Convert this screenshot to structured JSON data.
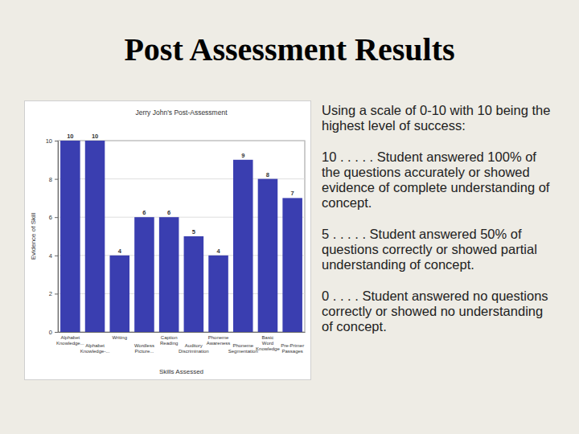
{
  "slide": {
    "title": "Post Assessment Results",
    "paragraphs": [
      "Using a scale of 0-10 with 10 being the highest level of success:",
      "10 . . . . . Student answered 100% of the questions accurately or showed evidence of complete understanding of concept.",
      "5 . . . . . Student answered 50% of questions correctly or showed partial understanding of concept.",
      "0 . . . . Student answered no questions correctly or showed no understanding of concept."
    ]
  },
  "chart_data": {
    "type": "bar",
    "title": "Jerry John's Post-Assessment",
    "x_label": "Skills Assessed",
    "y_label": "Evidence of Skill",
    "categories": [
      "Alphabet Knowledge...",
      "Alphabet Knowledge-...",
      "Writing",
      "Wordless Picture...",
      "Caption Reading",
      "Auditory Discrimination",
      "Phoneme Awareness",
      "Phoneme Segmentation",
      "Basic Word Knowledge",
      "Pre-Primer Passages"
    ],
    "values": [
      10,
      10,
      4,
      6,
      6,
      5,
      4,
      9,
      8,
      7
    ],
    "color": "#3a3eb0",
    "ylim": [
      0,
      10
    ],
    "yticks": [
      0,
      2,
      4,
      6,
      8,
      10
    ],
    "grid": true,
    "data_labels": true
  }
}
